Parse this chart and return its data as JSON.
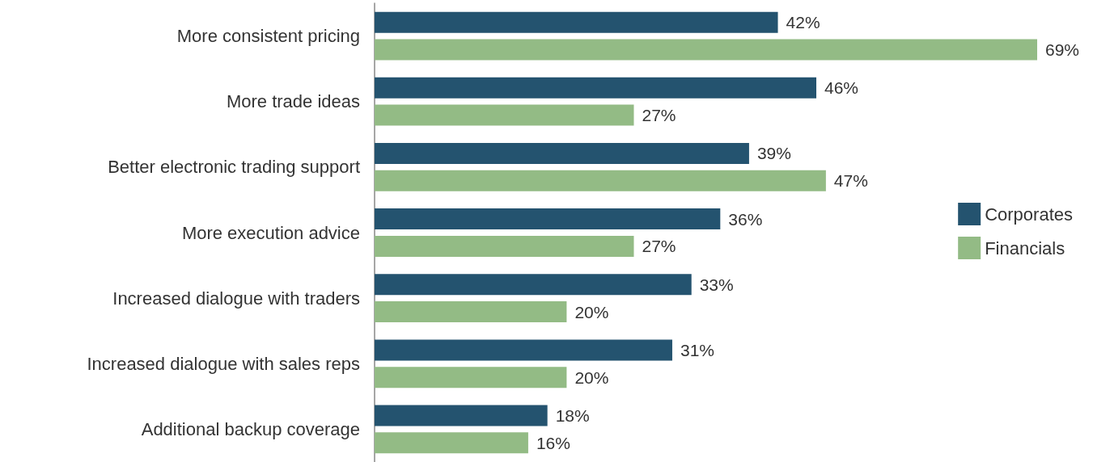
{
  "chart_data": {
    "type": "bar",
    "orientation": "horizontal",
    "categories": [
      "More consistent pricing",
      "More trade ideas",
      "Better electronic trading support",
      "More execution advice",
      "Increased dialogue with traders",
      "Increased dialogue with sales reps",
      "Additional backup coverage"
    ],
    "series": [
      {
        "name": "Corporates",
        "color": "#24536f",
        "values": [
          42,
          46,
          39,
          36,
          33,
          31,
          18
        ],
        "value_labels": [
          "42%",
          "46%",
          "39%",
          "36%",
          "33%",
          "31%",
          "18%"
        ]
      },
      {
        "name": "Financials",
        "color": "#93bb85",
        "values": [
          69,
          27,
          47,
          27,
          20,
          20,
          16
        ],
        "value_labels": [
          "69%",
          "27%",
          "47%",
          "27%",
          "20%",
          "20%",
          "16%"
        ]
      }
    ],
    "legend": "right"
  }
}
